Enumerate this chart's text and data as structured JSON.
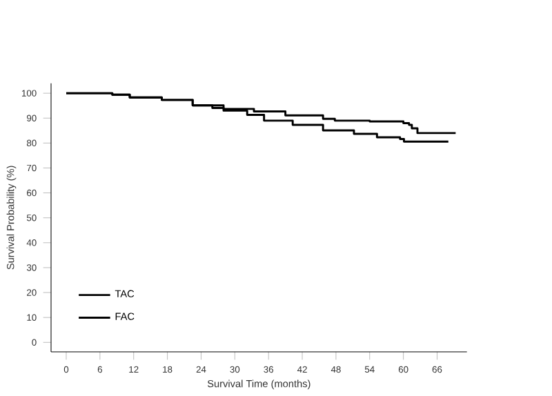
{
  "chart_data": {
    "type": "step",
    "xlabel": "Survival Time (months)",
    "ylabel": "Survival Probability (%)",
    "xlim": [
      -2.7,
      71.3
    ],
    "ylim": [
      -3.8,
      104
    ],
    "xticks": [
      0,
      6,
      12,
      18,
      24,
      30,
      36,
      42,
      48,
      54,
      60,
      66
    ],
    "yticks": [
      0,
      10,
      20,
      30,
      40,
      50,
      60,
      70,
      80,
      90,
      100
    ],
    "legend": "bottom left",
    "grid": false,
    "marker": "none",
    "line_style": "solid",
    "series": [
      {
        "name": "TAC",
        "color": "#000000",
        "x": [
          0,
          8.2,
          11.3,
          17,
          22.5,
          28,
          33.4,
          39,
          45.7,
          47.8,
          54,
          60,
          61,
          61.5,
          62.5,
          69.3
        ],
        "values": [
          100,
          99.4,
          98.3,
          97.3,
          95.1,
          93.7,
          92.7,
          91.1,
          89.7,
          89,
          88.7,
          88,
          87.3,
          85.9,
          84,
          84
        ]
      },
      {
        "name": "FAC",
        "color": "#000000",
        "x": [
          0,
          8.2,
          11.3,
          17,
          22.5,
          26,
          28,
          32.2,
          35.2,
          40.3,
          45.7,
          51.2,
          55.3,
          59.4,
          60.1,
          68
        ],
        "values": [
          100,
          99.4,
          98.3,
          97.3,
          95.1,
          94.1,
          93,
          91.3,
          89,
          87.3,
          85.1,
          83.7,
          82.3,
          81.6,
          80.6,
          80.6
        ]
      }
    ]
  }
}
